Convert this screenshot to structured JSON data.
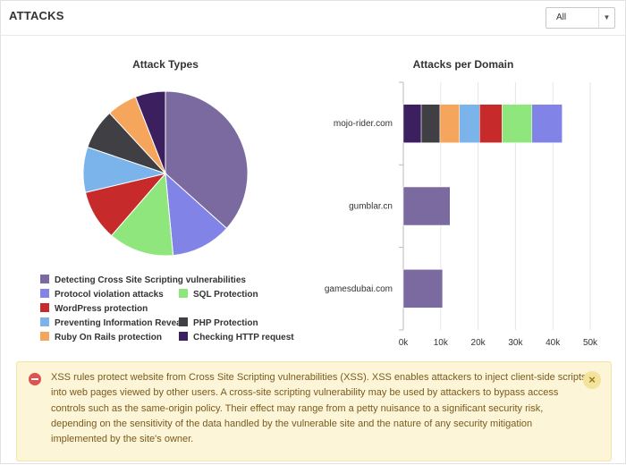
{
  "panel": {
    "title": "ATTACKS",
    "filter": {
      "selected": "All",
      "options": [
        "All"
      ]
    }
  },
  "colors": {
    "purple": "#7b6aa0",
    "blue": "#8183e6",
    "green": "#8fe67c",
    "red": "#c72a2a",
    "lightblue": "#7ab4ea",
    "dark": "#3f3f44",
    "orange": "#f5a55c",
    "navy": "#3c1f5f"
  },
  "chart_data": [
    {
      "type": "pie",
      "title": "Attack Types",
      "slices": [
        {
          "label": "Detecting Cross Site Scripting vulnerabilities",
          "value": 37,
          "color": "#7b6aa0"
        },
        {
          "label": "Protocol violation attacks",
          "value": 12,
          "color": "#8183e6"
        },
        {
          "label": "SQL Protection",
          "value": 13,
          "color": "#8fe67c"
        },
        {
          "label": "WordPress protection",
          "value": 10,
          "color": "#c72a2a"
        },
        {
          "label": "Preventing Information Reveal",
          "value": 9,
          "color": "#7ab4ea"
        },
        {
          "label": "PHP Protection",
          "value": 8,
          "color": "#3f3f44"
        },
        {
          "label": "Ruby On Rails protection",
          "value": 6,
          "color": "#f5a55c"
        },
        {
          "label": "Checking HTTP request",
          "value": 6,
          "color": "#3c1f5f"
        }
      ]
    },
    {
      "type": "bar",
      "orientation": "horizontal",
      "stacked": true,
      "title": "Attacks per Domain",
      "categories": [
        "mojo-rider.com",
        "gumblar.cn",
        "gamesdubai.com"
      ],
      "xlim": [
        0,
        50000
      ],
      "x_ticks": [
        "0k",
        "10k",
        "20k",
        "30k",
        "40k",
        "50k"
      ],
      "series": [
        {
          "color": "#3c1f5f",
          "values": [
            4800,
            0,
            0
          ]
        },
        {
          "color": "#3f3f44",
          "values": [
            5000,
            0,
            0
          ]
        },
        {
          "color": "#f5a55c",
          "values": [
            5200,
            0,
            0
          ]
        },
        {
          "color": "#7ab4ea",
          "values": [
            5400,
            0,
            0
          ]
        },
        {
          "color": "#c72a2a",
          "values": [
            6000,
            0,
            0
          ]
        },
        {
          "color": "#8fe67c",
          "values": [
            8000,
            0,
            0
          ]
        },
        {
          "color": "#8183e6",
          "values": [
            8100,
            0,
            0
          ]
        },
        {
          "color": "#7b6aa0",
          "values": [
            0,
            12500,
            10500
          ]
        }
      ]
    }
  ],
  "legend": {
    "rows": [
      [
        {
          "label": "Detecting Cross Site Scripting vulnerabilities",
          "color": "#7b6aa0"
        }
      ],
      [
        {
          "label": "Protocol violation attacks",
          "color": "#8183e6"
        },
        {
          "label": "SQL Protection",
          "color": "#8fe67c"
        }
      ],
      [
        {
          "label": "WordPress protection",
          "color": "#c72a2a"
        }
      ],
      [
        {
          "label": "Preventing Information Reveal",
          "color": "#7ab4ea"
        },
        {
          "label": "PHP Protection",
          "color": "#3f3f44"
        }
      ],
      [
        {
          "label": "Ruby On Rails protection",
          "color": "#f5a55c"
        },
        {
          "label": "Checking HTTP request",
          "color": "#3c1f5f"
        }
      ]
    ]
  },
  "alert": {
    "text": "XSS rules protect website from Cross Site Scripting vulnerabilities (XSS). XSS enables attackers to inject client-side scripts into web pages viewed by other users. A cross-site scripting vulnerability may be used by attackers to bypass access controls such as the same-origin policy. Their effect may range from a petty nuisance to a significant security risk, depending on the sensitivity of the data handled by the vulnerable site and the nature of any security mitigation implemented by the site's owner.",
    "close_label": "×"
  }
}
